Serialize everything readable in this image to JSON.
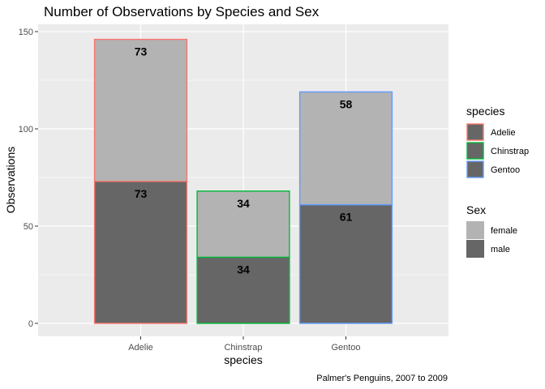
{
  "chart_data": {
    "type": "bar",
    "stacked": true,
    "title": "Number of Observations by Species and Sex",
    "caption": "Palmer's Penguins, 2007 to 2009",
    "xlabel": "species",
    "ylabel": "Observations",
    "categories": [
      "Adelie",
      "Chinstrap",
      "Gentoo"
    ],
    "series": [
      {
        "name": "male",
        "values": [
          73,
          34,
          61
        ],
        "fill": "#666666"
      },
      {
        "name": "female",
        "values": [
          73,
          34,
          58
        ],
        "fill": "#b3b3b3"
      }
    ],
    "ylim": [
      0,
      150
    ],
    "yticks": [
      0,
      50,
      100,
      150
    ],
    "grid": true,
    "panel_background": "#ebebeb",
    "legend_position": "right",
    "legends": [
      {
        "title": "species",
        "items": [
          {
            "label": "Adelie",
            "color": "#f8766d"
          },
          {
            "label": "Chinstrap",
            "color": "#00ba38"
          },
          {
            "label": "Gentoo",
            "color": "#619cff"
          }
        ]
      },
      {
        "title": "Sex",
        "items": [
          {
            "label": "female",
            "color": "#b3b3b3"
          },
          {
            "label": "male",
            "color": "#666666"
          }
        ]
      }
    ]
  }
}
